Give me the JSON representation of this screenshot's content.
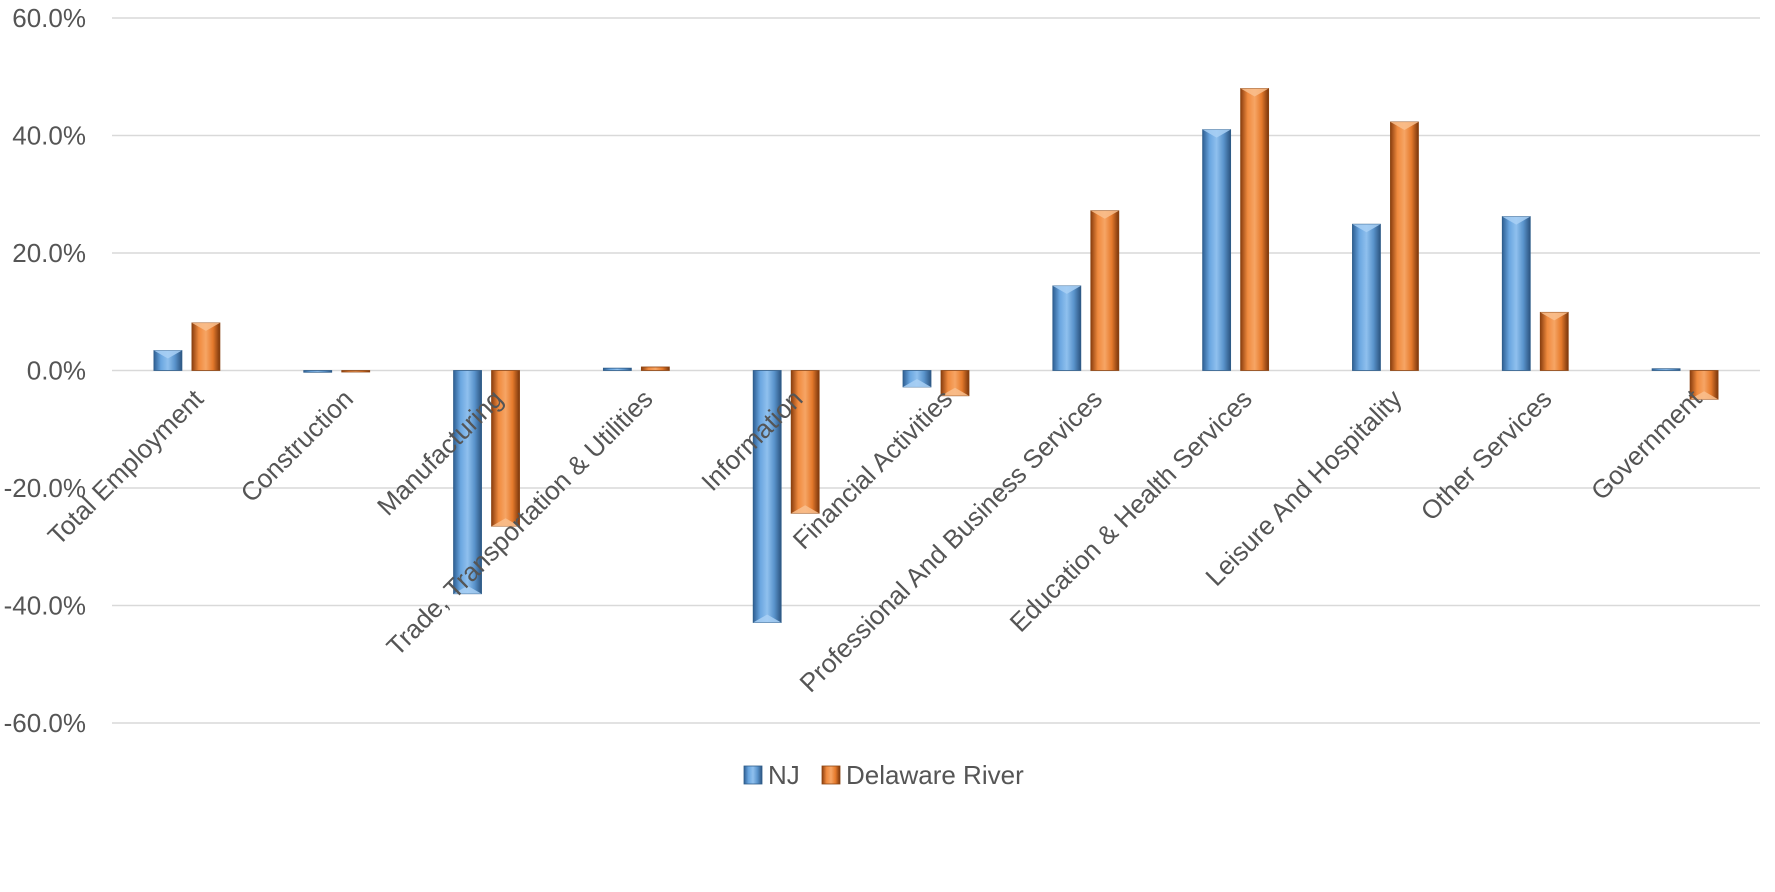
{
  "chart_data": {
    "type": "bar",
    "title": "",
    "xlabel": "",
    "ylabel": "",
    "ylim": [
      -60,
      60
    ],
    "y_tick_step": 20,
    "y_tick_format": "percent_1dp",
    "grid": true,
    "legend_position": "bottom",
    "categories": [
      "Total Employment",
      "Construction",
      "Manufacturing",
      "Trade, Transportation & Utilities",
      "Information",
      "Financial Activities",
      "Professional And Business Services",
      "Education & Health Services",
      "Leisure And Hospitality",
      "Other Services",
      "Government"
    ],
    "series": [
      {
        "name": "NJ",
        "color": "#5b9bd5",
        "values": [
          3.4,
          -0.3,
          -38.0,
          0.4,
          -42.9,
          -2.8,
          14.4,
          41.0,
          24.9,
          26.2,
          0.3
        ]
      },
      {
        "name": "Delaware River",
        "color": "#ed7d31",
        "values": [
          8.1,
          0.0,
          -26.5,
          0.6,
          -24.3,
          -4.3,
          27.2,
          48.0,
          42.3,
          9.9,
          -4.9
        ]
      }
    ]
  }
}
